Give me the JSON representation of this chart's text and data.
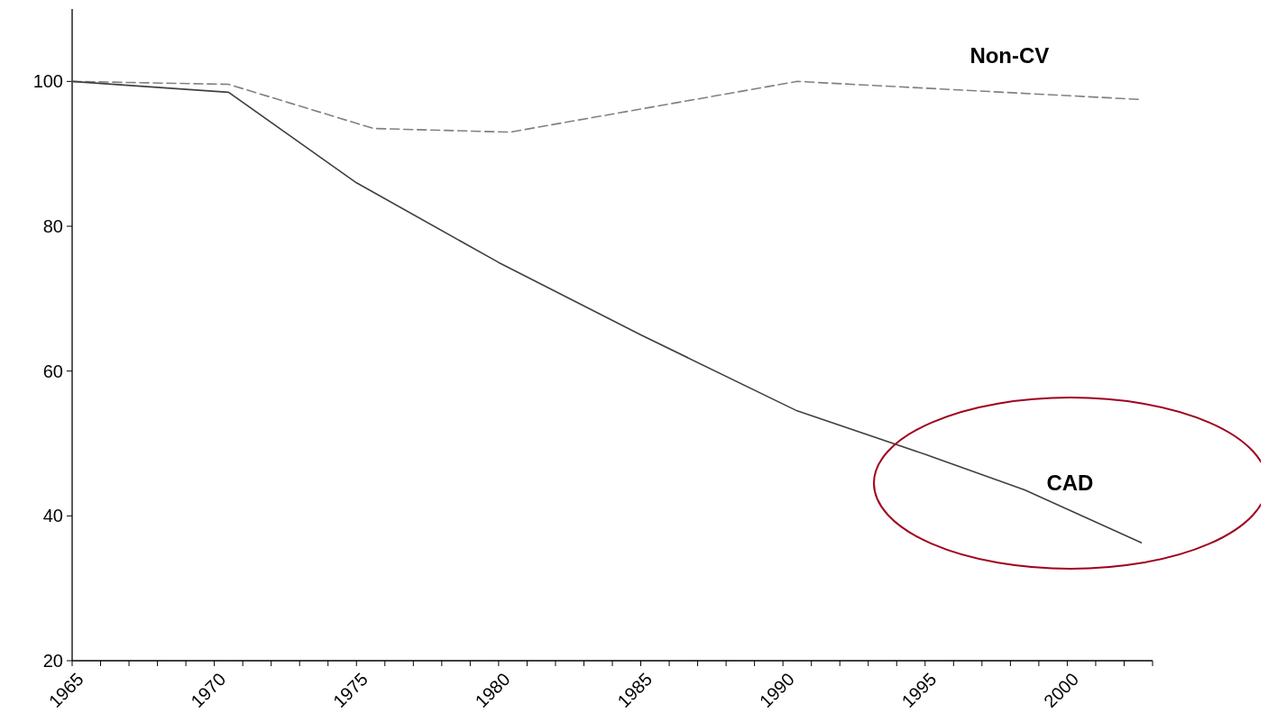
{
  "chart_data": {
    "type": "line",
    "xlim": [
      1965,
      2003
    ],
    "ylim": [
      20,
      110
    ],
    "xticks": [
      1965,
      {
        "value": 1966,
        "label": null
      },
      {
        "value": 1967,
        "label": null
      },
      {
        "value": 1968,
        "label": null
      },
      {
        "value": 1969,
        "label": null
      },
      1970,
      {
        "value": 1971,
        "label": null
      },
      {
        "value": 1972,
        "label": null
      },
      {
        "value": 1973,
        "label": null
      },
      {
        "value": 1974,
        "label": null
      },
      1975,
      {
        "value": 1976,
        "label": null
      },
      {
        "value": 1977,
        "label": null
      },
      {
        "value": 1978,
        "label": null
      },
      {
        "value": 1979,
        "label": null
      },
      1980,
      {
        "value": 1981,
        "label": null
      },
      {
        "value": 1982,
        "label": null
      },
      {
        "value": 1983,
        "label": null
      },
      {
        "value": 1984,
        "label": null
      },
      1985,
      {
        "value": 1986,
        "label": null
      },
      {
        "value": 1987,
        "label": null
      },
      {
        "value": 1988,
        "label": null
      },
      {
        "value": 1989,
        "label": null
      },
      1990,
      {
        "value": 1991,
        "label": null
      },
      {
        "value": 1992,
        "label": null
      },
      {
        "value": 1993,
        "label": null
      },
      {
        "value": 1994,
        "label": null
      },
      1995,
      {
        "value": 1996,
        "label": null
      },
      {
        "value": 1997,
        "label": null
      },
      {
        "value": 1998,
        "label": null
      },
      {
        "value": 1999,
        "label": null
      },
      2000,
      {
        "value": 2001,
        "label": null
      },
      {
        "value": 2002,
        "label": null
      },
      {
        "value": 2003,
        "label": null
      }
    ],
    "yticks": [
      20,
      40,
      60,
      80,
      100
    ],
    "grid": false,
    "marker": "none",
    "series": [
      {
        "name": "Non-CV",
        "color": "#808080",
        "line_style": "dashed",
        "x": [
          1965,
          1970.5,
          1975.6,
          1980.4,
          1990.5,
          2002.6
        ],
        "values": [
          100,
          99.6,
          93.5,
          93,
          100,
          97.5
        ]
      },
      {
        "name": "CAD",
        "color": "#404040",
        "line_style": "solid",
        "x": [
          1965,
          1970.5,
          1975,
          1980,
          1985,
          1990.5,
          1995,
          1998.5,
          2002.6
        ],
        "values": [
          100,
          98.5,
          86,
          75,
          65,
          54.5,
          48.5,
          43.6,
          36.3
        ]
      }
    ]
  }
}
